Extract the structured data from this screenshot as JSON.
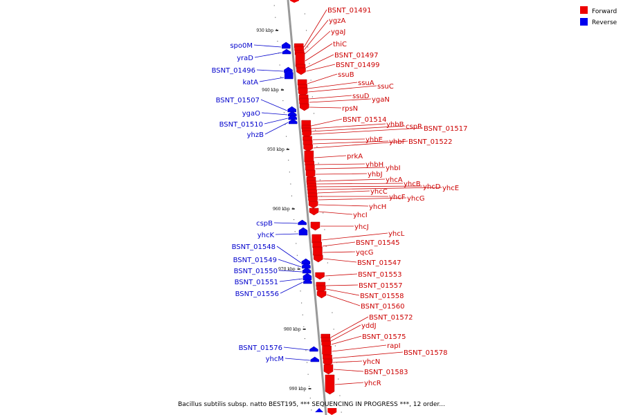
{
  "legend": {
    "forward_label": "Forward",
    "reverse_label": "Reverse",
    "forward_color": "#ee0000",
    "reverse_color": "#0000ee"
  },
  "caption": "Bacillus subtilis subsp. natto BEST195, *** SEQUENCING IN PROGRESS ***, 12 order...",
  "axis": {
    "ticks": [
      "930 kbp",
      "940 kbp",
      "950 kbp",
      "960 kbp",
      "970 kbp",
      "980 kbp",
      "990 kbp"
    ]
  },
  "forward_genes": [
    "BSNT_01491",
    "ygzA",
    "ygaJ",
    "thiC",
    "BSNT_01497",
    "BSNT_01499",
    "ssuB",
    "ssuA",
    "ssuC",
    "ssuD",
    "ygaN",
    "rpsN",
    "BSNT_01514",
    "yhbB",
    "cspR",
    "BSNT_01517",
    "yhbE",
    "yhbF",
    "BSNT_01522",
    "prkA",
    "yhbH",
    "yhbI",
    "yhbJ",
    "yhcA",
    "yhcB",
    "yhcD",
    "yhcE",
    "yhcC",
    "yhcF",
    "yhcG",
    "yhcH",
    "yhcI",
    "yhcJ",
    "yhcL",
    "BSNT_01545",
    "yqcG",
    "BSNT_01547",
    "BSNT_01553",
    "BSNT_01557",
    "BSNT_01558",
    "BSNT_01560",
    "BSNT_01572",
    "yddJ",
    "BSNT_01575",
    "rapI",
    "BSNT_01578",
    "yhcN",
    "BSNT_01583",
    "yhcR"
  ],
  "reverse_genes": [
    "spo0M",
    "yraD",
    "BSNT_01496",
    "katA",
    "BSNT_01507",
    "ygaO",
    "BSNT_01510",
    "yhzB",
    "cspB",
    "yhcK",
    "BSNT_01548",
    "BSNT_01549",
    "BSNT_01550",
    "BSNT_01551",
    "BSNT_01556",
    "BSNT_01576",
    "yhcM"
  ]
}
